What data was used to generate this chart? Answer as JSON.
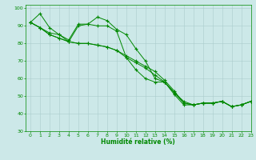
{
  "xlabel": "Humidité relative (%)",
  "background_color": "#cce8e8",
  "grid_color": "#aacccc",
  "line_color": "#008800",
  "marker": "+",
  "xlim": [
    -0.5,
    23
  ],
  "ylim": [
    30,
    102
  ],
  "yticks": [
    30,
    40,
    50,
    60,
    70,
    80,
    90,
    100
  ],
  "xticks": [
    0,
    1,
    2,
    3,
    4,
    5,
    6,
    7,
    8,
    9,
    10,
    11,
    12,
    13,
    14,
    15,
    16,
    17,
    18,
    19,
    20,
    21,
    22,
    23
  ],
  "series": [
    [
      92,
      97,
      89,
      85,
      81,
      90,
      91,
      95,
      93,
      88,
      85,
      77,
      70,
      60,
      58,
      51,
      45,
      45,
      46,
      46,
      47,
      44,
      45,
      47
    ],
    [
      92,
      89,
      86,
      85,
      82,
      91,
      91,
      90,
      90,
      87,
      72,
      65,
      60,
      58,
      58,
      52,
      46,
      45,
      46,
      46,
      47,
      44,
      45,
      47
    ],
    [
      92,
      89,
      85,
      83,
      81,
      80,
      80,
      79,
      78,
      76,
      72,
      69,
      66,
      62,
      58,
      52,
      47,
      45,
      46,
      46,
      47,
      44,
      45,
      47
    ],
    [
      92,
      89,
      85,
      83,
      81,
      80,
      80,
      79,
      78,
      76,
      73,
      70,
      67,
      64,
      59,
      53,
      46,
      45,
      46,
      46,
      47,
      44,
      45,
      47
    ]
  ]
}
